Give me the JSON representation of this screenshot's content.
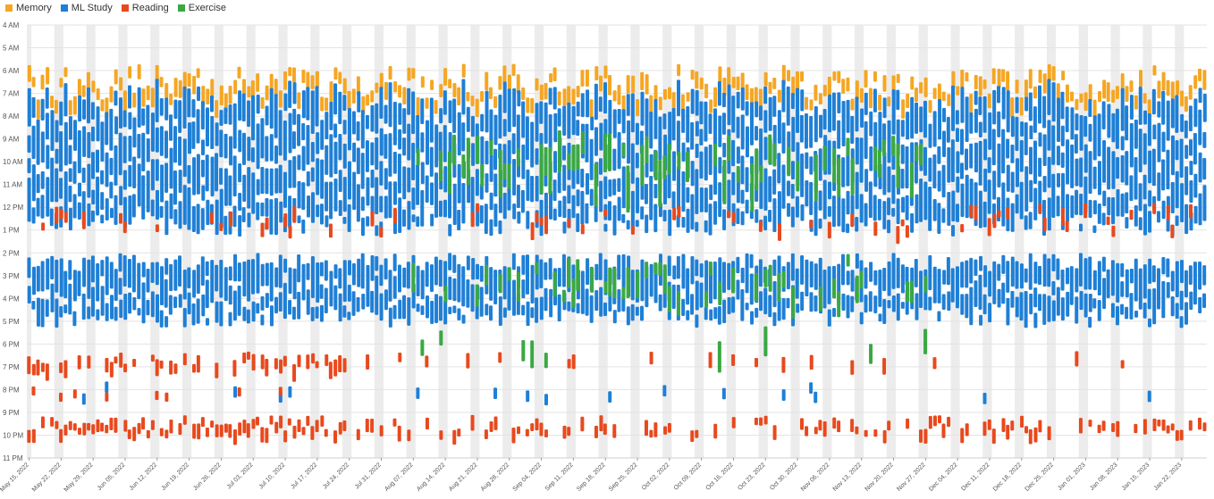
{
  "chart_data": {
    "type": "timeline",
    "title": "",
    "xlabel": "",
    "ylabel": "",
    "ylim": [
      4,
      23
    ],
    "y_ticks": [
      "4 AM",
      "5 AM",
      "6 AM",
      "7 AM",
      "8 AM",
      "9 AM",
      "10 AM",
      "11 AM",
      "12 PM",
      "1 PM",
      "2 PM",
      "3 PM",
      "4 PM",
      "5 PM",
      "6 PM",
      "7 PM",
      "8 PM",
      "9 PM",
      "10 PM",
      "11 PM"
    ],
    "x_ticks": [
      "May 15, 2022",
      "May 22, 2022",
      "May 29, 2022",
      "Jun 05, 2022",
      "Jun 12, 2022",
      "Jun 19, 2022",
      "Jun 26, 2022",
      "Jul 03, 2022",
      "Jul 10, 2022",
      "Jul 17, 2022",
      "Jul 24, 2022",
      "Jul 31, 2022",
      "Aug 07, 2022",
      "Aug 14, 2022",
      "Aug 21, 2022",
      "Aug 28, 2022",
      "Sep 04, 2022",
      "Sep 11, 2022",
      "Sep 18, 2022",
      "Sep 25, 2022",
      "Oct 02, 2022",
      "Oct 09, 2022",
      "Oct 16, 2022",
      "Oct 23, 2022",
      "Oct 30, 2022",
      "Nov 06, 2022",
      "Nov 13, 2022",
      "Nov 20, 2022",
      "Nov 27, 2022",
      "Dec 04, 2022",
      "Dec 11, 2022",
      "Dec 18, 2022",
      "Dec 25, 2022",
      "Jan 01, 2023",
      "Jan 08, 2023",
      "Jan 15, 2023",
      "Jan 22, 2023"
    ],
    "x_start": "May 15, 2022",
    "x_days": 258,
    "weekend_shading": true,
    "legend": {
      "placement": "top-left",
      "entries": [
        {
          "name": "Memory",
          "color": "#f5a623"
        },
        {
          "name": "ML Study",
          "color": "#1e7fd6"
        },
        {
          "name": "Reading",
          "color": "#e8491d"
        },
        {
          "name": "Exercise",
          "color": "#3aa843"
        }
      ]
    },
    "series": [
      {
        "name": "Memory",
        "color": "#f5a623",
        "typical_start_hour": 6.3,
        "typical_duration_hours": 0.6
      },
      {
        "name": "ML Study",
        "color": "#1e7fd6",
        "typical_sessions": [
          [
            7.2,
            9.3
          ],
          [
            9.6,
            12.9
          ],
          [
            14.5,
            17.0
          ]
        ]
      },
      {
        "name": "Reading",
        "color": "#e8491d",
        "typical_sessions": [
          [
            18.6,
            19.1
          ],
          [
            21.4,
            22.1
          ]
        ]
      },
      {
        "name": "Exercise",
        "color": "#3aa843",
        "active_from": "Aug 07, 2022",
        "active_to": "Nov 27, 2022",
        "typical_sessions": [
          [
            9.2,
            10.6
          ],
          [
            14.6,
            15.6
          ]
        ]
      }
    ]
  }
}
